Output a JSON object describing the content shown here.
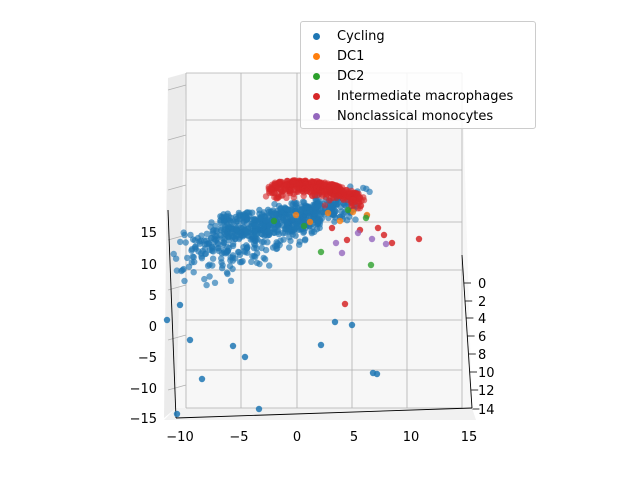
{
  "chart_data": {
    "type": "scatter",
    "projection": "3d",
    "x_ticks": [
      "−10",
      "−5",
      "0",
      "5",
      "10",
      "15"
    ],
    "y_ticks": [
      "0",
      "2",
      "4",
      "6",
      "8",
      "10",
      "12",
      "14"
    ],
    "z_ticks": [
      "−15",
      "−10",
      "−5",
      "0",
      "5",
      "10",
      "15"
    ],
    "xlim": [
      -10,
      15
    ],
    "ylim": [
      0,
      14
    ],
    "zlim": [
      -15,
      15
    ],
    "grid": true,
    "legend_position": "top-right",
    "series": [
      {
        "name": "Cycling",
        "color": "#1f77b4"
      },
      {
        "name": "DC1",
        "color": "#ff7f0e"
      },
      {
        "name": "DC2",
        "color": "#2ca02c"
      },
      {
        "name": "Intermediate macrophages",
        "color": "#d62728"
      },
      {
        "name": "Nonclassical monocytes",
        "color": "#9467bd"
      }
    ]
  }
}
